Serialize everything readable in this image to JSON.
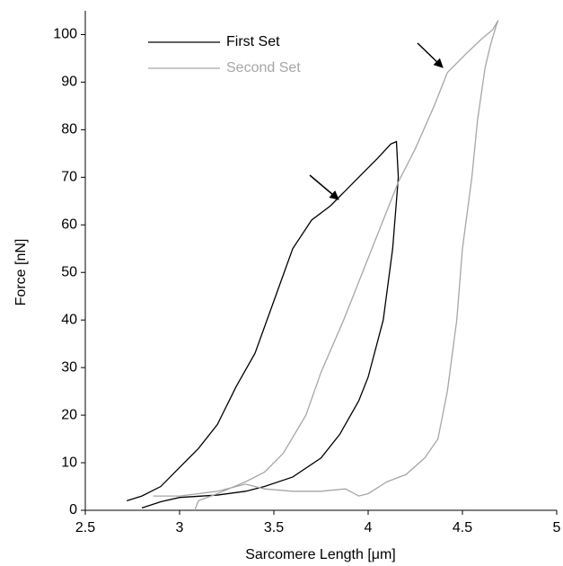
{
  "chart_data": {
    "type": "line",
    "x_label": "Sarcomere Length [μm]",
    "y_label": "Force [nN]",
    "xlim": [
      2.5,
      5
    ],
    "xticks": [
      2.5,
      3,
      3.5,
      4,
      4.5,
      5
    ],
    "ylim": [
      0,
      105
    ],
    "yticks": [
      0,
      10,
      20,
      30,
      40,
      50,
      60,
      70,
      80,
      90,
      100
    ],
    "grid": false,
    "legend": "top-left",
    "series": [
      {
        "name": "First Set",
        "color": "#000000",
        "x": [
          2.72,
          2.8,
          2.9,
          3.0,
          3.1,
          3.2,
          3.3,
          3.4,
          3.5,
          3.6,
          3.7,
          3.8,
          3.85,
          3.95,
          4.05,
          4.12,
          4.15,
          4.16,
          4.13,
          4.08,
          4.0,
          3.95,
          3.85,
          3.75,
          3.6,
          3.45,
          3.35,
          3.2,
          3.0,
          2.9,
          2.8
        ],
        "values": [
          2,
          3,
          5,
          9,
          13,
          18,
          26,
          33,
          44,
          55,
          61,
          64,
          66,
          70,
          74,
          77,
          77.5,
          70,
          55,
          40,
          28,
          23,
          16,
          11,
          7,
          5,
          4,
          3.2,
          2.7,
          1.8,
          0.5
        ]
      },
      {
        "name": "Second Set",
        "color": "#a6a6a6",
        "x": [
          2.86,
          3.0,
          3.2,
          3.35,
          3.45,
          3.6,
          3.75,
          3.88,
          3.95,
          4.0,
          4.1,
          4.2,
          4.3,
          4.37,
          4.42,
          4.47,
          4.5,
          4.55,
          4.58,
          4.62,
          4.65,
          4.68,
          4.69,
          4.66,
          4.6,
          4.52,
          4.42,
          4.35,
          4.25,
          4.16,
          4.05,
          3.95,
          3.87,
          3.75,
          3.67,
          3.55,
          3.45,
          3.35,
          3.2,
          3.1,
          3.08
        ],
        "values": [
          3,
          3,
          4,
          5.5,
          4.5,
          4,
          4,
          4.5,
          3,
          3.5,
          6,
          7.5,
          11,
          15,
          25,
          40,
          55,
          70,
          82,
          93,
          98,
          102,
          103,
          101,
          99,
          96,
          92,
          85,
          76,
          69,
          58,
          48,
          40,
          29,
          20,
          12,
          8,
          6,
          3.5,
          2,
          0
        ]
      }
    ]
  }
}
